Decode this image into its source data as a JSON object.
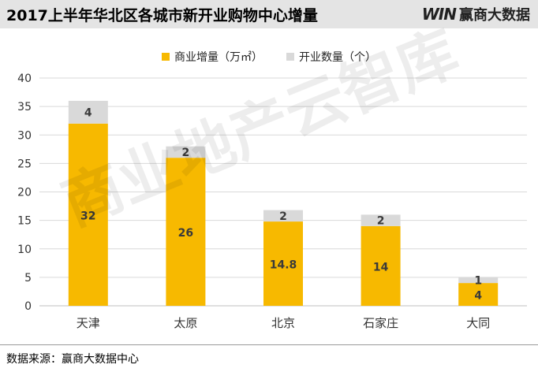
{
  "header": {
    "title": "2017上半年华北区各城市新开业购物中心增量",
    "brand_logo": "WIN",
    "brand_name": "赢商大数据"
  },
  "watermark": "商业地产云智库",
  "source": "数据来源：赢商大数据中心",
  "colors": {
    "primary": "#f7b900",
    "secondary": "#d9d9d9",
    "grid": "#d9d9d9"
  },
  "chart_data": {
    "type": "bar",
    "stacked": true,
    "categories": [
      "天津",
      "太原",
      "北京",
      "石家庄",
      "大同"
    ],
    "series": [
      {
        "name": "商业增量（万㎡）",
        "values": [
          32,
          26,
          14.8,
          14,
          4
        ]
      },
      {
        "name": "开业数量（个）",
        "values": [
          4,
          2,
          2,
          2,
          1
        ]
      }
    ],
    "ylim": [
      0,
      40
    ],
    "yticks": [
      0,
      5,
      10,
      15,
      20,
      25,
      30,
      35,
      40
    ],
    "grid": true,
    "legend": "top-center",
    "title": "2017上半年华北区各城市新开业购物中心增量"
  }
}
